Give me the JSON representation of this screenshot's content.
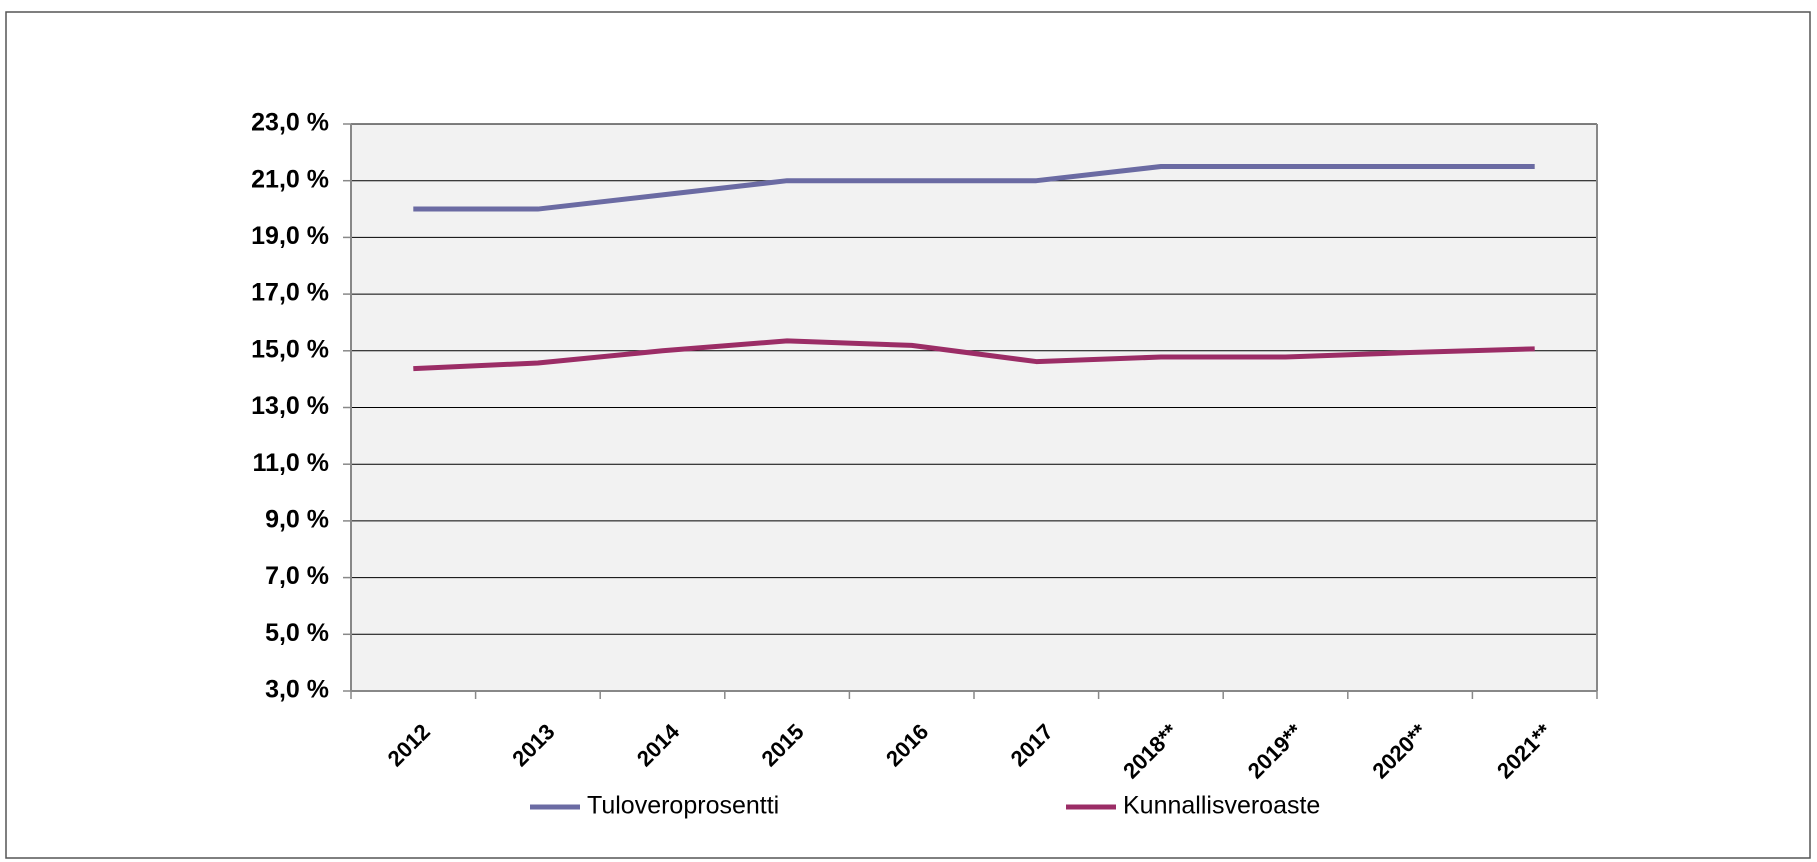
{
  "chart_data": {
    "type": "line",
    "categories": [
      "2012",
      "2013",
      "2014",
      "2015",
      "2016",
      "2017",
      "2018**",
      "2019**",
      "2020**",
      "2021**"
    ],
    "series": [
      {
        "name": "Tuloveroprosentti",
        "color": "#6b6ba3",
        "values": [
          20.0,
          20.0,
          20.5,
          21.0,
          21.0,
          21.0,
          21.5,
          21.5,
          21.5,
          21.5
        ]
      },
      {
        "name": "Kunnallisveroaste",
        "color": "#9b2d66",
        "values": [
          14.37,
          14.57,
          15.0,
          15.35,
          15.19,
          14.62,
          14.78,
          14.78,
          14.94,
          15.07
        ]
      }
    ],
    "ylim": [
      3.0,
      23.0
    ],
    "yticks": [
      {
        "value": 3.0,
        "label": "3,0 %"
      },
      {
        "value": 5.0,
        "label": "5,0 %"
      },
      {
        "value": 7.0,
        "label": "7,0 %"
      },
      {
        "value": 9.0,
        "label": "9,0 %"
      },
      {
        "value": 11.0,
        "label": "11,0 %"
      },
      {
        "value": 13.0,
        "label": "13,0 %"
      },
      {
        "value": 15.0,
        "label": "15,0 %"
      },
      {
        "value": 17.0,
        "label": "17,0 %"
      },
      {
        "value": 19.0,
        "label": "19,0 %"
      },
      {
        "value": 21.0,
        "label": "21,0 %"
      },
      {
        "value": 23.0,
        "label": "23,0 %"
      }
    ],
    "grid": true
  }
}
